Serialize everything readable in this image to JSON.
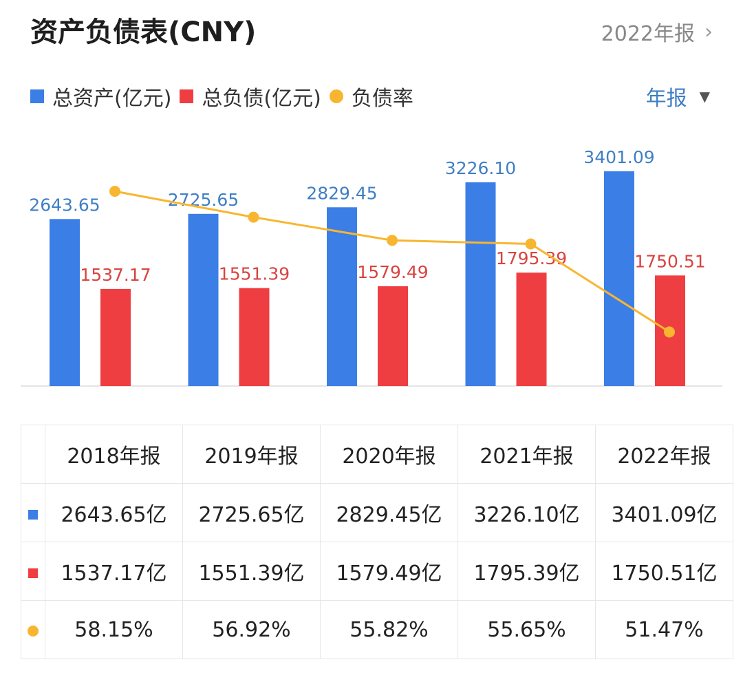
{
  "header": {
    "title": "资产负债表(CNY)",
    "period_label": "2022年报"
  },
  "legend": {
    "items": [
      {
        "label": "总资产(亿元)",
        "color": "#3b7ee6",
        "icon": "square"
      },
      {
        "label": "总负债(亿元)",
        "color": "#ef3e42",
        "icon": "square"
      },
      {
        "label": "负债率",
        "color": "#f8b630",
        "icon": "dot"
      }
    ]
  },
  "dropdown": {
    "label": "年报"
  },
  "chart_data": {
    "type": "bar",
    "categories": [
      "2018年报",
      "2019年报",
      "2020年报",
      "2021年报",
      "2022年报"
    ],
    "series": [
      {
        "name": "总资产(亿元)",
        "type": "bar",
        "color": "#3b7ee6",
        "label_color": "#3f7fc4",
        "values": [
          2643.65,
          2725.65,
          2829.45,
          3226.1,
          3401.09
        ],
        "labels": [
          "2643.65",
          "2725.65",
          "2829.45",
          "3226.10",
          "3401.09"
        ]
      },
      {
        "name": "总负债(亿元)",
        "type": "bar",
        "color": "#ef3e42",
        "label_color": "#d9433f",
        "values": [
          1537.17,
          1551.39,
          1579.49,
          1795.39,
          1750.51
        ],
        "labels": [
          "1537.17",
          "1551.39",
          "1579.49",
          "1795.39",
          "1750.51"
        ]
      },
      {
        "name": "负债率",
        "type": "line",
        "color": "#f8b630",
        "values": [
          58.15,
          56.92,
          55.82,
          55.65,
          51.47
        ]
      }
    ],
    "ylim": [
      0,
      3700
    ]
  },
  "table": {
    "headers": [
      "2018年报",
      "2019年报",
      "2020年报",
      "2021年报",
      "2022年报"
    ],
    "rows": [
      {
        "marker": "square",
        "color": "#3b7ee6",
        "cells": [
          "2643.65亿",
          "2725.65亿",
          "2829.45亿",
          "3226.10亿",
          "3401.09亿"
        ]
      },
      {
        "marker": "square",
        "color": "#ef3e42",
        "cells": [
          "1537.17亿",
          "1551.39亿",
          "1579.49亿",
          "1795.39亿",
          "1750.51亿"
        ]
      },
      {
        "marker": "dot",
        "color": "#f8b630",
        "cells": [
          "58.15%",
          "56.92%",
          "55.82%",
          "55.65%",
          "51.47%"
        ]
      }
    ]
  }
}
